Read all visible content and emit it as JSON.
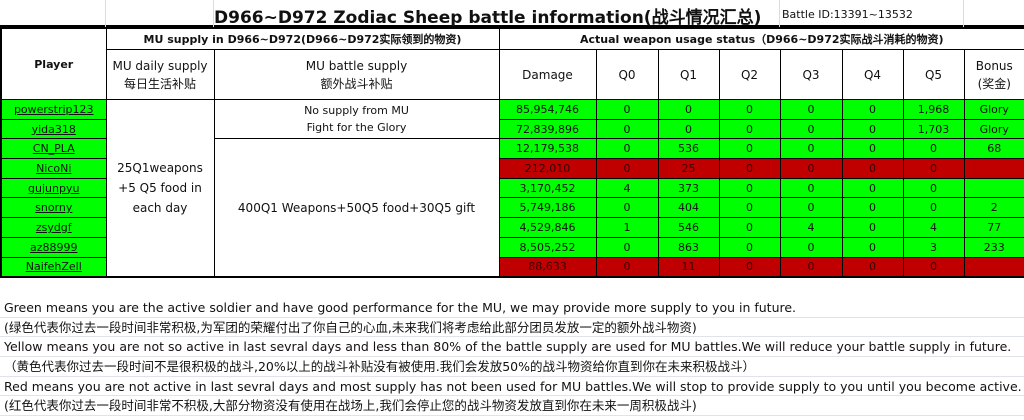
{
  "title": "D966~D972 Zodiac Sheep battle information(战斗情况汇总)",
  "battle_id": "Battle ID:13391~13532",
  "headers": {
    "player": "Player",
    "mu_supply": "MU supply in D966~D972(D966~D972实际领到的物资)",
    "actual_usage": "Actual weapon usage status（D966~D972实际战斗消耗的物资)",
    "daily_en": "MU daily supply",
    "daily_cn": "每日生活补贴",
    "battle_en": "MU battle supply",
    "battle_cn": "额外战斗补贴",
    "damage": "Damage",
    "q0": "Q0",
    "q1": "Q1",
    "q2": "Q2",
    "q3": "Q3",
    "q4": "Q4",
    "q5": "Q5",
    "bonus_en": "Bonus",
    "bonus_cn": "(奖金)"
  },
  "supply": {
    "daily": "25Q1weapons +5 Q5 food in each day",
    "glory_line1": "No supply from MU",
    "glory_line2": "Fight for the Glory",
    "battle": "400Q1 Weapons+50Q5 food+30Q5 gift"
  },
  "colors": {
    "green": "#00ff00",
    "red": "#c00000"
  },
  "rows": [
    {
      "player": "powerstrip123",
      "status": "green",
      "damage": "85,954,746",
      "q0": "0",
      "q1": "0",
      "q2": "0",
      "q3": "0",
      "q4": "0",
      "q5": "1,968",
      "bonus": "Glory"
    },
    {
      "player": "yida318",
      "status": "green",
      "damage": "72,839,896",
      "q0": "0",
      "q1": "0",
      "q2": "0",
      "q3": "0",
      "q4": "0",
      "q5": "1,703",
      "bonus": "Glory"
    },
    {
      "player": "CN_PLA",
      "status": "green",
      "damage": "12,179,538",
      "q0": "0",
      "q1": "536",
      "q2": "0",
      "q3": "0",
      "q4": "0",
      "q5": "0",
      "bonus": "68"
    },
    {
      "player": "NicoNi",
      "status": "red",
      "damage": "212,010",
      "q0": "0",
      "q1": "25",
      "q2": "0",
      "q3": "0",
      "q4": "0",
      "q5": "0",
      "bonus": ""
    },
    {
      "player": "gujunpyu",
      "status": "green",
      "damage": "3,170,452",
      "q0": "4",
      "q1": "373",
      "q2": "0",
      "q3": "0",
      "q4": "0",
      "q5": "0",
      "bonus": ""
    },
    {
      "player": "snorny",
      "status": "green",
      "damage": "5,749,186",
      "q0": "0",
      "q1": "404",
      "q2": "0",
      "q3": "0",
      "q4": "0",
      "q5": "0",
      "bonus": "2"
    },
    {
      "player": "zsydgf",
      "status": "green",
      "damage": "4,529,846",
      "q0": "1",
      "q1": "546",
      "q2": "0",
      "q3": "4",
      "q4": "0",
      "q5": "4",
      "bonus": "77"
    },
    {
      "player": "az88999",
      "status": "green",
      "damage": "8,505,252",
      "q0": "0",
      "q1": "863",
      "q2": "0",
      "q3": "0",
      "q4": "0",
      "q5": "3",
      "bonus": "233"
    },
    {
      "player": "NaifehZell",
      "status": "red",
      "damage": "88,633",
      "q0": "0",
      "q1": "11",
      "q2": "0",
      "q3": "0",
      "q4": "0",
      "q5": "0",
      "bonus": ""
    }
  ],
  "notes": [
    "Green means you are the active soldier and have good performance for the MU, we may provide more supply to you in future.",
    "(绿色代表你过去一段时间非常积极,为军团的荣耀付出了你自己的心血,未来我们将考虑给此部分团员发放一定的额外战斗物资)",
    "Yellow means you are not so active in last sevral days and less than 80% of the battle supply are used for MU battles.We will reduce your battle supply in future.",
    "（黄色代表你过去一段时间不是很积极的战斗,20%以上的战斗补贴没有被使用.我们会发放50%的战斗物资给你直到你在未来积极战斗）",
    "Red means you are not active in last sevral days and most supply has not been used for MU battles.We will stop to provide supply to you until you become active.",
    "(红色代表你过去一段时间非常不积极,大部分物资没有使用在战场上,我们会停止您的战斗物资发放直到你在未来一周积极战斗)"
  ]
}
